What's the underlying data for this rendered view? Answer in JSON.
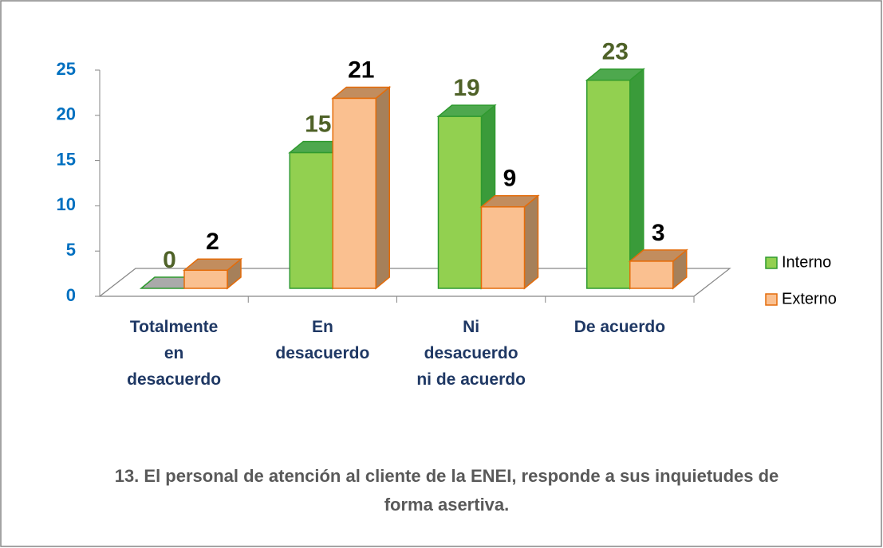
{
  "chart_data": {
    "type": "bar3d",
    "title": "13. El personal de atención al cliente de la ENEI, responde a sus inquietudes de forma asertiva.",
    "categories": [
      "Totalmente\nen\ndesacuerdo",
      "En\ndesacuerdo",
      "Ni\ndesacuerdo\nni de acuerdo",
      "De acuerdo"
    ],
    "series": [
      {
        "name": "Interno",
        "color": "#92d050",
        "values": [
          0,
          15,
          19,
          23
        ]
      },
      {
        "name": "Externo",
        "color": "#fac090",
        "values": [
          2,
          21,
          9,
          3
        ]
      }
    ],
    "ylim": [
      0,
      25
    ],
    "yticks": [
      0,
      5,
      10,
      15,
      20,
      25
    ],
    "legend": "right"
  }
}
